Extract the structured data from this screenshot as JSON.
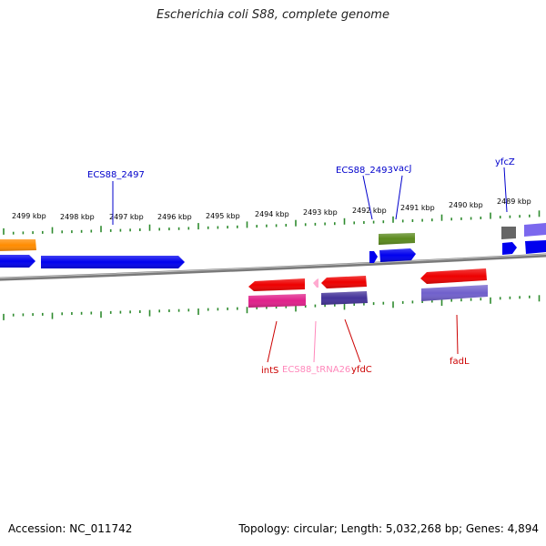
{
  "title": "Escherichia coli S88, complete genome",
  "accession_text": "Accession: NC_011742",
  "summary_text": "Topology: circular; Length: 5,032,268 bp; Genes: 4,894",
  "colors": {
    "backbone": "#8c8c8c",
    "ticks": "#2e8b2e",
    "forward_label": "#0000cc",
    "reverse_label": "#cc0000",
    "trna_label": "#ff88bb"
  },
  "scale_labels": [
    "2499 kbp",
    "2498 kbp",
    "2497 kbp",
    "2496 kbp",
    "2495 kbp",
    "2494 kbp",
    "2493 kbp",
    "2492 kbp",
    "2491 kbp",
    "2490 kbp",
    "2489 kbp"
  ],
  "genes": [
    {
      "id": "orange-left",
      "strand": "forward",
      "color": "#ff8c00",
      "label": ""
    },
    {
      "id": "blue-left-a",
      "strand": "forward",
      "color": "#0000ee",
      "label": ""
    },
    {
      "id": "blue-long",
      "strand": "forward",
      "color": "#0000ee",
      "label": ""
    },
    {
      "id": "blue-small",
      "strand": "forward",
      "color": "#0000ee",
      "label": ""
    },
    {
      "id": "green-top",
      "strand": "forward",
      "color": "#5b8a1e",
      "label": ""
    },
    {
      "id": "blue-mid",
      "strand": "forward",
      "color": "#0000ee",
      "label": ""
    },
    {
      "id": "gray-small",
      "strand": "forward",
      "color": "#666666",
      "label": ""
    },
    {
      "id": "blue-right-small",
      "strand": "forward",
      "color": "#0000ee",
      "label": ""
    },
    {
      "id": "purple-right",
      "strand": "forward",
      "color": "#7b68ee",
      "label": ""
    },
    {
      "id": "blue-right",
      "strand": "forward",
      "color": "#0000ee",
      "label": ""
    },
    {
      "id": "red-ints",
      "strand": "reverse",
      "color": "#ee0000",
      "label": ""
    },
    {
      "id": "magenta-ints",
      "strand": "reverse",
      "color": "#e0208a",
      "label": ""
    },
    {
      "id": "pink-trna",
      "strand": "reverse",
      "color": "#ffaad0",
      "label": ""
    },
    {
      "id": "red-yfdc",
      "strand": "reverse",
      "color": "#ee0000",
      "label": ""
    },
    {
      "id": "navy-yfdc",
      "strand": "reverse",
      "color": "#443399",
      "label": ""
    },
    {
      "id": "red-fadl",
      "strand": "reverse",
      "color": "#ee0000",
      "label": ""
    },
    {
      "id": "lavender-fadl",
      "strand": "reverse",
      "color": "#7060cc",
      "label": ""
    }
  ],
  "labels": {
    "ecs88_2497": "ECS88_2497",
    "ecs88_2493": "ECS88_2493",
    "vacj": "vacJ",
    "yfcz": "yfcZ",
    "ints": "intS",
    "ecs88_trna26": "ECS88_tRNA26",
    "yfdc": "yfdC",
    "fadl": "fadL"
  }
}
